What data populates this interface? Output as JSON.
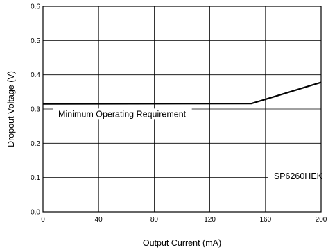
{
  "chart_data": {
    "type": "line",
    "xlabel": "Output Current (mA)",
    "ylabel": "Dropout Voltage (V)",
    "xlim": [
      0,
      200
    ],
    "ylim": [
      0,
      0.6
    ],
    "x_ticks": [
      0,
      40,
      80,
      120,
      160,
      200
    ],
    "y_ticks": [
      0.0,
      0.1,
      0.2,
      0.3,
      0.4,
      0.5,
      0.6
    ],
    "x_tick_labels": [
      "0",
      "40",
      "80",
      "120",
      "160",
      "200"
    ],
    "y_tick_labels": [
      "0.0",
      "0.1",
      "0.2",
      "0.3",
      "0.4",
      "0.5",
      "0.6"
    ],
    "grid": true,
    "series": [
      {
        "x": [
          0,
          150,
          200
        ],
        "y": [
          0.315,
          0.316,
          0.378
        ]
      }
    ],
    "annotations": [
      {
        "text": "Minimum Operating Requirement",
        "x": 11,
        "y": 0.277
      },
      {
        "text": "SP6260HEK",
        "x": 166,
        "y": 0.095
      }
    ]
  }
}
